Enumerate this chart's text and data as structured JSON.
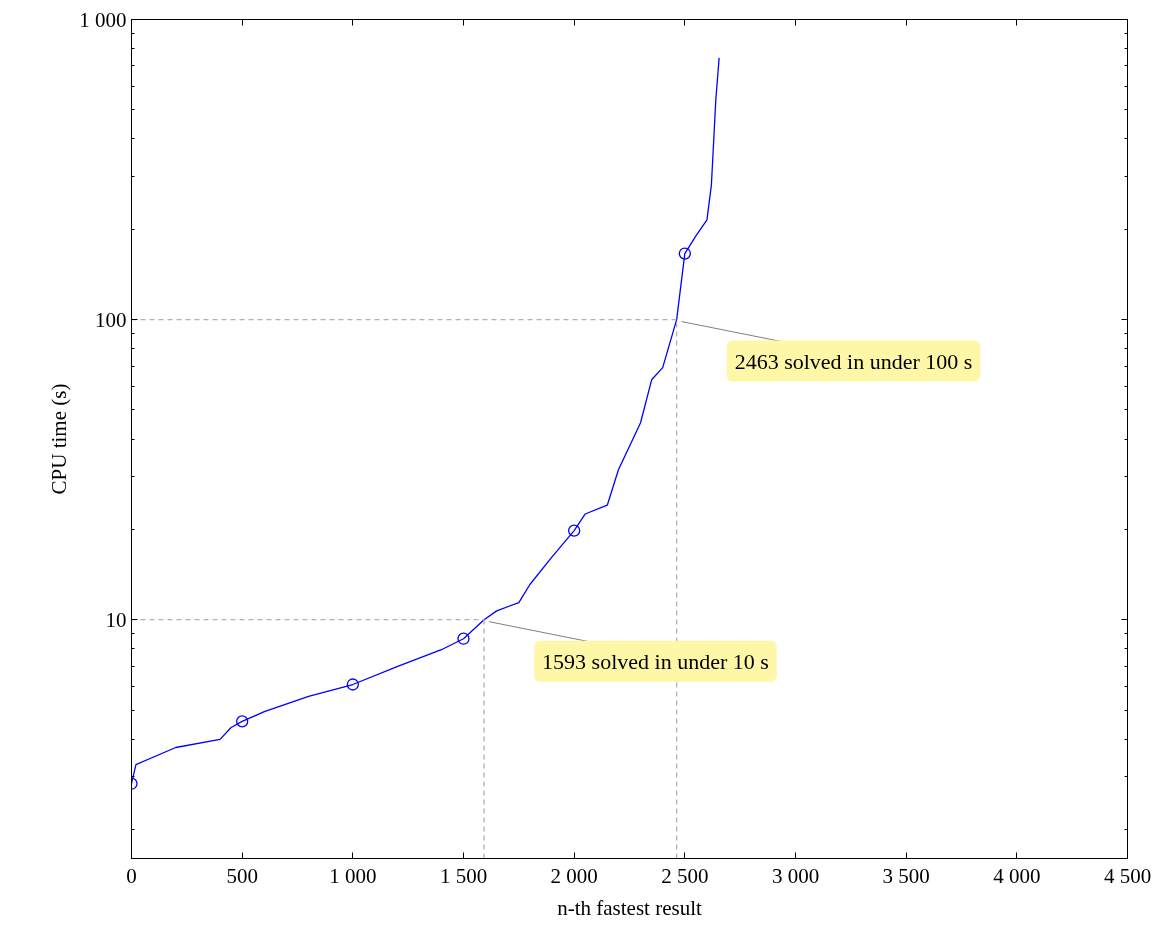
{
  "chart_data": {
    "type": "line",
    "xlabel": "n-th fastest result",
    "ylabel": "CPU time (s)",
    "log": "y",
    "xlim": [
      0,
      4500
    ],
    "ylim": [
      1.6,
      1000
    ],
    "xticks": [
      0,
      500,
      {
        "value": 1000,
        "label": "1 000"
      },
      {
        "value": 1500,
        "label": "1 500"
      },
      {
        "value": 2000,
        "label": "2 000"
      },
      {
        "value": 2500,
        "label": "2 500"
      },
      {
        "value": 3000,
        "label": "3 000"
      },
      {
        "value": 3500,
        "label": "3 500"
      },
      {
        "value": 4000,
        "label": "4 000"
      },
      {
        "value": 4500,
        "label": "4 500"
      }
    ],
    "yticks": [
      10,
      100,
      {
        "value": 1000,
        "label": "1 000"
      }
    ],
    "grid": false,
    "line_style": "solid",
    "series": [
      {
        "color": "#0000ff",
        "marker": "none",
        "x": [
          0,
          20,
          200,
          400,
          450,
          500,
          600,
          800,
          1000,
          1200,
          1400,
          1500,
          1593,
          1650,
          1750,
          1800,
          1900,
          2000,
          2050,
          2150,
          2200,
          2300,
          2350,
          2400,
          2463,
          2500,
          2550,
          2600,
          2620,
          2640,
          2655
        ],
        "values": [
          2.84,
          3.29,
          3.75,
          3.99,
          4.37,
          4.58,
          4.94,
          5.55,
          6.08,
          6.98,
          7.94,
          8.64,
          10,
          10.7,
          11.4,
          13.1,
          16.2,
          19.8,
          22.5,
          24.1,
          31.6,
          45.3,
          63,
          69.2,
          100,
          166,
          190,
          215,
          281,
          540,
          745
        ]
      },
      {
        "type": "scatter",
        "color": "#0000ff",
        "marker": "circle",
        "x": [
          0,
          500,
          1000,
          1500,
          2000,
          2500
        ],
        "values": [
          2.84,
          4.58,
          6.08,
          8.64,
          19.8,
          166
        ]
      },
      {
        "type": "line",
        "color": "#b0b0b0",
        "marker": "none",
        "line_style": "dashed",
        "x": [
          0,
          1593
        ],
        "values": [
          10,
          10
        ]
      },
      {
        "type": "line",
        "color": "#b0b0b0",
        "marker": "none",
        "line_style": "dashed",
        "x": [
          1593,
          1593
        ],
        "values": [
          1.6,
          10
        ]
      },
      {
        "type": "line",
        "color": "#b0b0b0",
        "marker": "none",
        "line_style": "dashed",
        "x": [
          0,
          2463
        ],
        "values": [
          100,
          100
        ]
      },
      {
        "type": "line",
        "color": "#b0b0b0",
        "marker": "none",
        "line_style": "dashed",
        "x": [
          2463,
          2463
        ],
        "values": [
          1.6,
          100
        ]
      }
    ],
    "annotations": [
      {
        "text": "1593 solved in under 10 s",
        "x": 1593,
        "y": 10
      },
      {
        "text": "2463 solved in under 100 s",
        "x": 2463,
        "y": 100
      }
    ]
  }
}
